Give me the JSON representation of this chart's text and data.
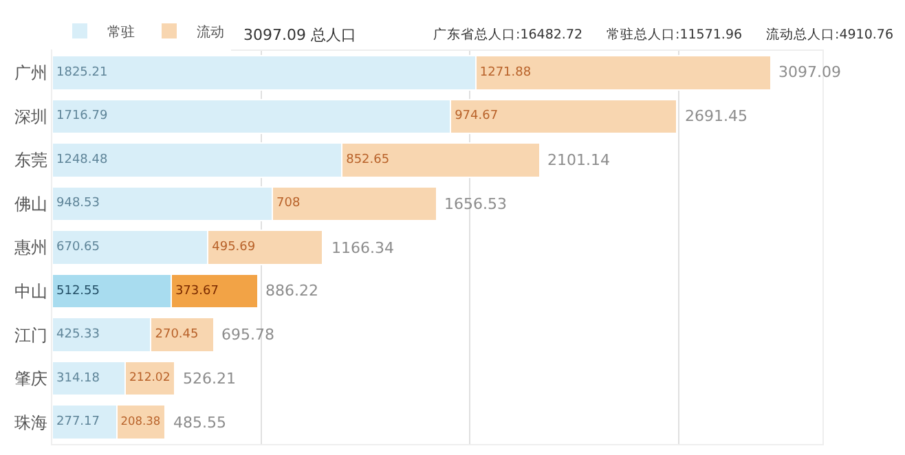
{
  "chart_data": {
    "type": "bar",
    "orientation": "horizontal",
    "stacked": true,
    "categories": [
      "广州",
      "深圳",
      "东莞",
      "佛山",
      "惠州",
      "中山",
      "江门",
      "肇庆",
      "珠海"
    ],
    "series": [
      {
        "name": "常驻",
        "color": "#d8eef8",
        "colors": [
          "#d8eef8",
          "#d8eef8",
          "#d8eef8",
          "#d8eef8",
          "#d8eef8",
          "#a8dcef",
          "#d8eef8",
          "#d8eef8",
          "#d8eef8"
        ],
        "values": [
          1825.21,
          1716.79,
          1248.48,
          948.53,
          670.65,
          512.55,
          425.33,
          314.18,
          277.17
        ]
      },
      {
        "name": "流动",
        "color": "#f8d6b0",
        "colors": [
          "#f8d6b0",
          "#f8d6b0",
          "#f8d6b0",
          "#f8d6b0",
          "#f8d6b0",
          "#f2a346",
          "#f8d6b0",
          "#f8d6b0",
          "#f8d6b0"
        ],
        "values": [
          1271.88,
          974.67,
          852.65,
          708,
          495.69,
          373.67,
          270.45,
          212.02,
          208.38
        ]
      }
    ],
    "totals": [
      "3097.09",
      "2691.45",
      "2101.14",
      "1656.53",
      "1166.34",
      "886.22",
      "695.78",
      "526.21",
      "485.55"
    ],
    "data_labels": true,
    "xlim": [
      0,
      3320
    ],
    "xticks": [
      {
        "value": 900,
        "label": null
      },
      {
        "value": 1800,
        "label": null
      },
      {
        "value": 2700,
        "label": null
      }
    ],
    "grid": "x",
    "tick_labels": "y",
    "legend": "top left",
    "annotations": [
      "3097.09 总人口",
      "广东省总人口:16482.72",
      "常驻总人口:11571.96",
      "流动总人口:4910.76"
    ]
  }
}
